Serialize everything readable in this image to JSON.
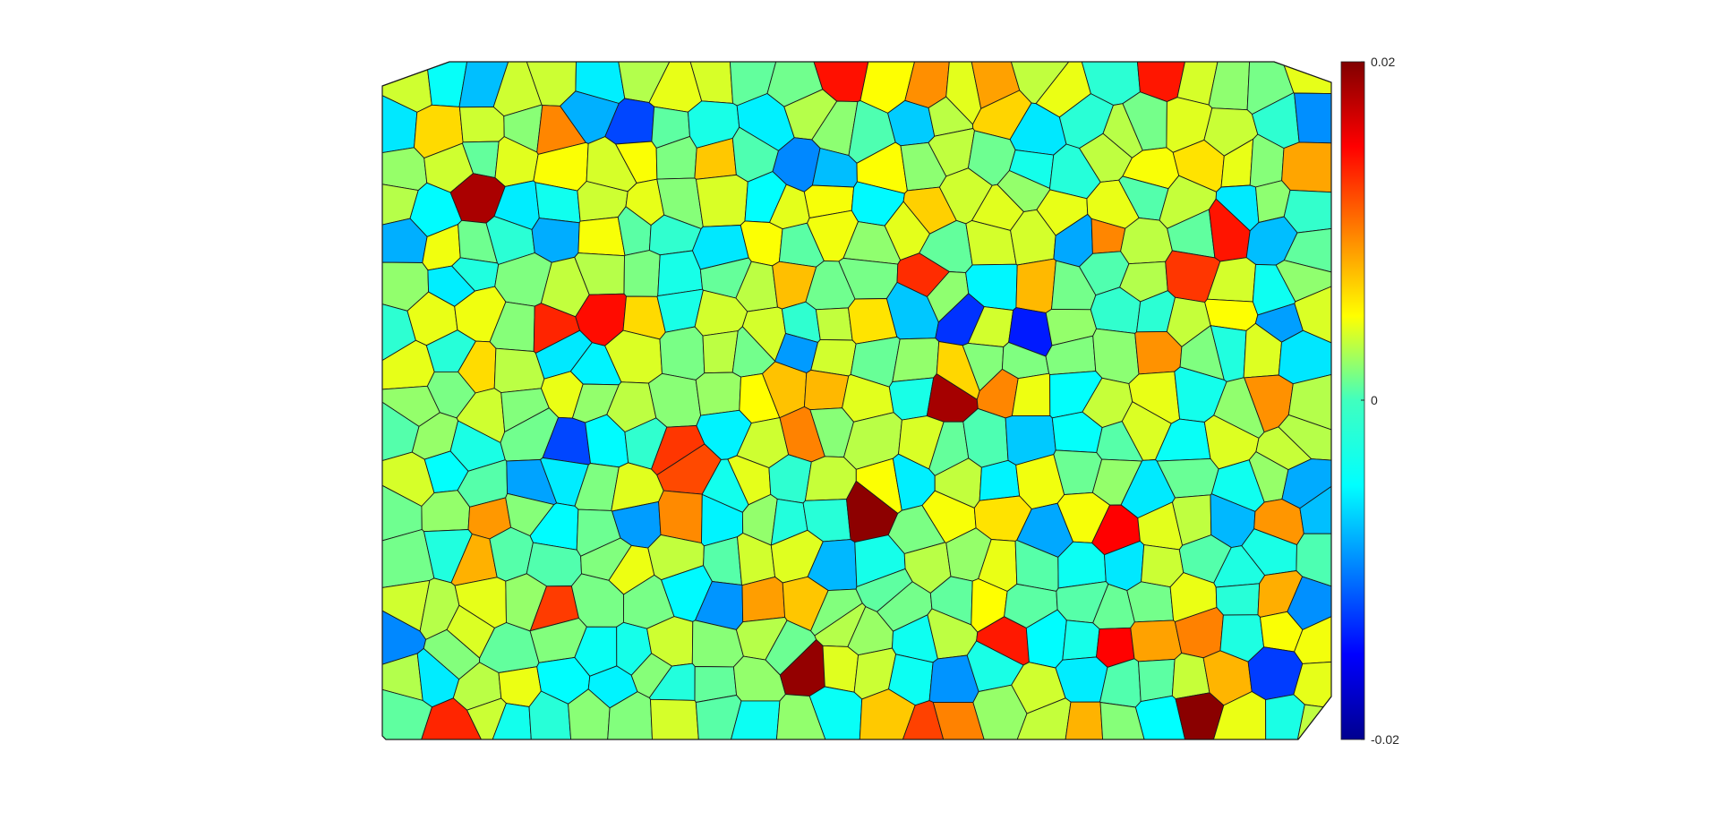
{
  "chart_data": {
    "type": "heatmap",
    "description_type": "voronoi-grain-field",
    "title": "",
    "xlabel": "",
    "ylabel": "",
    "colormap": "jet",
    "clim": [
      -0.02,
      0.02
    ],
    "colorbar": {
      "ticks": [
        0.02,
        0,
        -0.02
      ],
      "tick_labels": [
        "0.02",
        "0",
        "-0.02"
      ],
      "placement": "right"
    },
    "grid": false,
    "field_value_distribution": {
      "dominant_range": [
        -0.01,
        0.006
      ],
      "typical_value": -0.002,
      "extreme_positive": 0.02,
      "extreme_negative": -0.014
    }
  }
}
